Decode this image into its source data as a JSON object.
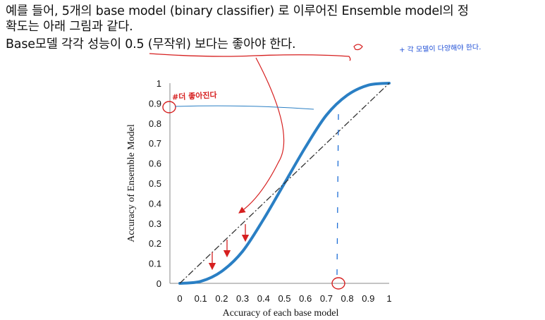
{
  "text": {
    "line1": "예를 들어, 5개의 base model (binary classifier) 로 이루어진 Ensemble model의 정",
    "line2": "확도는 아래 그림과 같다.",
    "line3_pre": "Base모델 각각 성능이 ",
    "line3_hl": "0.5 (무작위) 보다는 좋아야 한다.",
    "note_blue": "+ 각 모델이 다양해야 한다.",
    "note_red": "#더 좋아진다"
  },
  "chart_data": {
    "type": "line",
    "xlabel": "Accuracy of each base model",
    "ylabel": "Accuracy of Ensemble Model",
    "xlim": [
      0,
      1
    ],
    "ylim": [
      0,
      1
    ],
    "xticks": [
      "0",
      "0.1",
      "0.2",
      "0.3",
      "0.4",
      "0.5",
      "0.6",
      "0.7",
      "0.8",
      "0.9",
      "1"
    ],
    "yticks": [
      "0",
      "0.1",
      "0.2",
      "0.3",
      "0.4",
      "0.5",
      "0.6",
      "0.7",
      "0.8",
      "0.9",
      "1"
    ],
    "series": [
      {
        "style": "solid",
        "color": "#2a7fc4",
        "x": [
          0,
          0.1,
          0.2,
          0.3,
          0.4,
          0.5,
          0.6,
          0.7,
          0.8,
          0.9,
          1.0
        ],
        "y": [
          0,
          0.01,
          0.06,
          0.16,
          0.32,
          0.5,
          0.68,
          0.84,
          0.94,
          0.99,
          1.0
        ]
      },
      {
        "style": "dash-dot",
        "color": "#333333",
        "x": [
          0,
          1
        ],
        "y": [
          0,
          1
        ]
      }
    ],
    "annotation_colors": {
      "red": "#d61f1f",
      "blue": "#1f4fd6"
    }
  }
}
